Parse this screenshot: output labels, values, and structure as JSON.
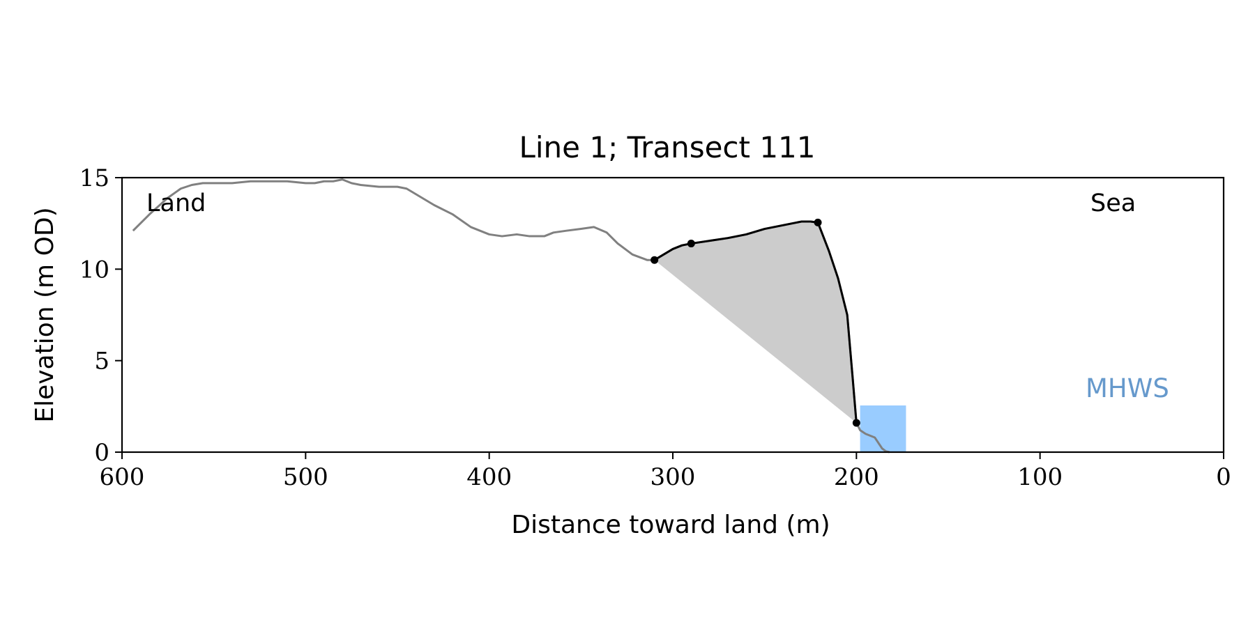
{
  "chart_data": {
    "type": "line",
    "title": "Line 1; Transect 111",
    "xlabel": "Distance toward land (m)",
    "ylabel": "Elevation (m OD)",
    "xlim": [
      600,
      0
    ],
    "ylim": [
      0,
      15
    ],
    "x_ticks": [
      600,
      500,
      400,
      300,
      200,
      100,
      0
    ],
    "y_ticks": [
      0,
      5,
      10,
      15
    ],
    "grid": false,
    "annotations": {
      "land": "Land",
      "sea": "Sea",
      "mhws": "MHWS"
    },
    "colors": {
      "profile": "#808080",
      "cliff": "#000000",
      "fill": "#cccccc",
      "mhws_box": "#99ccff",
      "mhws_text": "#6699cc"
    },
    "profile": {
      "x": [
        594,
        585,
        575,
        568,
        562,
        556,
        548,
        540,
        530,
        520,
        510,
        500,
        495,
        490,
        485,
        480,
        475,
        470,
        460,
        450,
        445,
        440,
        430,
        420,
        410,
        405,
        400,
        393,
        385,
        378,
        370,
        365,
        358,
        350,
        343,
        336,
        330,
        322,
        314,
        310,
        305,
        300,
        295,
        290,
        280,
        270,
        260,
        250,
        240,
        230,
        225,
        221,
        215,
        210,
        205,
        202,
        200,
        198,
        195,
        190,
        188,
        186,
        184,
        182
      ],
      "y": [
        12.1,
        13.0,
        13.9,
        14.4,
        14.6,
        14.7,
        14.7,
        14.7,
        14.8,
        14.8,
        14.8,
        14.7,
        14.7,
        14.8,
        14.8,
        14.9,
        14.7,
        14.6,
        14.5,
        14.5,
        14.4,
        14.1,
        13.5,
        13.0,
        12.3,
        12.1,
        11.9,
        11.8,
        11.9,
        11.8,
        11.8,
        12.0,
        12.1,
        12.2,
        12.3,
        12.0,
        11.4,
        10.8,
        10.5,
        10.5,
        10.8,
        11.1,
        11.3,
        11.4,
        11.55,
        11.7,
        11.9,
        12.2,
        12.4,
        12.6,
        12.6,
        12.55,
        11.0,
        9.5,
        7.5,
        4.0,
        1.6,
        1.2,
        1.0,
        0.8,
        0.5,
        0.2,
        0.05,
        0.0
      ]
    },
    "cliff_segment": {
      "x": [
        310,
        305,
        300,
        295,
        290,
        280,
        270,
        260,
        250,
        240,
        230,
        225,
        221,
        215,
        210,
        205,
        202,
        200
      ],
      "y": [
        10.5,
        10.8,
        11.1,
        11.3,
        11.4,
        11.55,
        11.7,
        11.9,
        12.2,
        12.4,
        12.6,
        12.6,
        12.55,
        11.0,
        9.5,
        7.5,
        4.0,
        1.6
      ]
    },
    "markers": [
      {
        "x": 310,
        "y": 10.5
      },
      {
        "x": 290,
        "y": 11.4
      },
      {
        "x": 221,
        "y": 12.55
      },
      {
        "x": 200,
        "y": 1.6
      }
    ],
    "mhws_box": {
      "x0": 198,
      "x1": 173,
      "y0": 0,
      "y1": 2.55
    }
  }
}
